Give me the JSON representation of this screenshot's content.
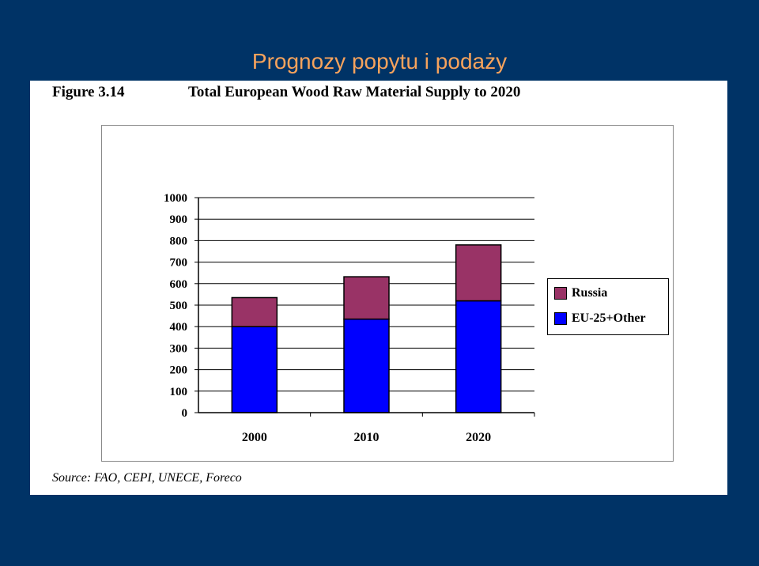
{
  "slide": {
    "title": "Prognozy popytu i podaży"
  },
  "figure": {
    "number": "Figure 3.14",
    "title": "Total European Wood Raw Material Supply to 2020",
    "source": "Source: FAO, CEPI, UNECE, Foreco"
  },
  "chart_data": {
    "type": "bar",
    "stacked": true,
    "title": "Total European Wood Raw Material Supply to 2020",
    "xlabel": "",
    "ylabel": "",
    "categories": [
      "2000",
      "2010",
      "2020"
    ],
    "series": [
      {
        "name": "EU-25+Other",
        "color": "#0000ff",
        "values": [
          400,
          435,
          520
        ]
      },
      {
        "name": "Russia",
        "color": "#993366",
        "values": [
          135,
          197,
          260
        ]
      }
    ],
    "ylim": [
      0,
      1000
    ],
    "yticks": [
      "0",
      "100",
      "200",
      "300",
      "400",
      "500",
      "600",
      "700",
      "800",
      "900",
      "1000"
    ],
    "grid": true,
    "legend_position": "right",
    "legend": [
      "Russia",
      "EU-25+Other"
    ]
  }
}
